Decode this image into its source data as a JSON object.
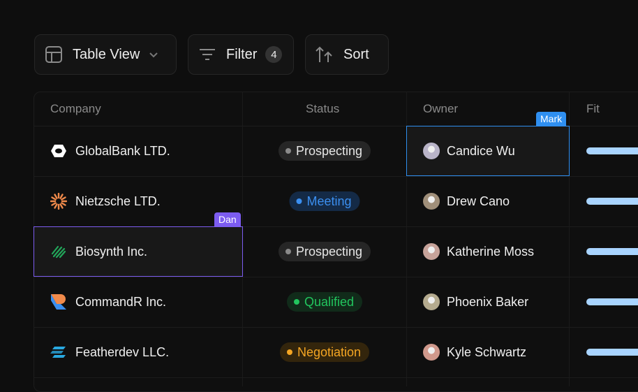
{
  "toolbar": {
    "table_view": "Table View",
    "filter": "Filter",
    "filter_count": "4",
    "sort": "Sort"
  },
  "columns": {
    "company": "Company",
    "status": "Status",
    "owner": "Owner",
    "fit": "Fit"
  },
  "rows": [
    {
      "company": "GlobalBank LTD.",
      "logo": "globalbank-logo",
      "status": "Prospecting",
      "status_color": "#8a8a8a",
      "owner": "Candice Wu",
      "fit": 1
    },
    {
      "company": "Nietzsche LTD.",
      "logo": "nietzsche-sun-logo",
      "status": "Meeting",
      "status_color": "#3b8ff0",
      "owner": "Drew Cano",
      "fit": 1
    },
    {
      "company": "Biosynth Inc.",
      "logo": "biosynth-logo",
      "status": "Prospecting",
      "status_color": "#8a8a8a",
      "owner": "Katherine Moss",
      "fit": 1
    },
    {
      "company": "CommandR Inc.",
      "logo": "commandr-logo",
      "status": "Qualified",
      "status_color": "#22c55e",
      "owner": "Phoenix Baker",
      "fit": 1
    },
    {
      "company": "Featherdev LLC.",
      "logo": "featherdev-logo",
      "status": "Negotiation",
      "status_color": "#f5a623",
      "owner": "Kyle Schwartz",
      "fit": 1
    }
  ],
  "cursors": {
    "mark": {
      "label": "Mark",
      "color": "#2f8ff0"
    },
    "dan": {
      "label": "Dan",
      "color": "#7c5cf0"
    }
  }
}
